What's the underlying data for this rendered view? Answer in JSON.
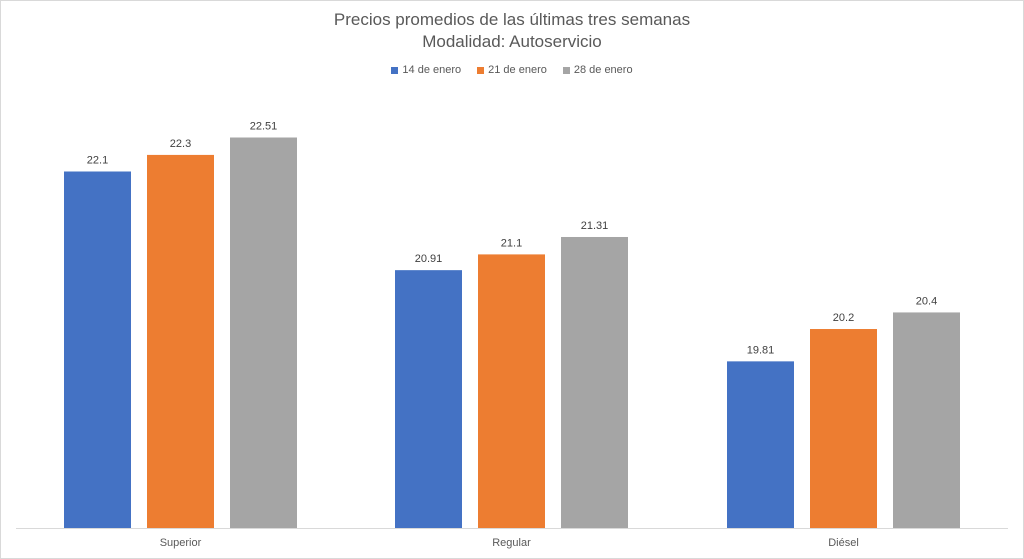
{
  "chart_data": {
    "type": "bar",
    "title": "Precios promedios de las últimas tres semanas",
    "subtitle": "Modalidad: Autoservicio",
    "categories": [
      "Superior",
      "Regular",
      "Diésel"
    ],
    "series": [
      {
        "name": "14 de enero",
        "color": "#4472C4",
        "values": [
          22.1,
          20.91,
          19.81
        ],
        "labels": [
          "22.1",
          "20.91",
          "19.81"
        ]
      },
      {
        "name": "21 de enero",
        "color": "#ED7D31",
        "values": [
          22.3,
          21.1,
          20.2
        ],
        "labels": [
          "22.3",
          "21.1",
          "20.2"
        ]
      },
      {
        "name": "28 de enero",
        "color": "#A5A5A5",
        "values": [
          22.51,
          21.31,
          20.4
        ],
        "labels": [
          "22.51",
          "21.31",
          "20.4"
        ]
      }
    ],
    "xlabel": "",
    "ylabel": "",
    "ylim": [
      17.8,
      22.8
    ],
    "legend": "top-center",
    "grid": false,
    "data_labels": true
  }
}
